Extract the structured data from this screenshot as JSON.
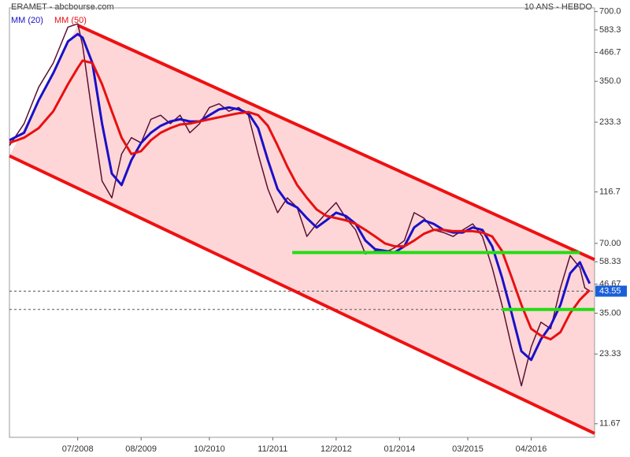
{
  "chart_data": {
    "type": "line",
    "title": "ERAMET - abcbourse.com",
    "subtitle": "10 ANS - HEBDO",
    "log_scale": true,
    "xlim": [
      "05/2007",
      "05/2017"
    ],
    "xticks": [
      "07/2008",
      "08/2009",
      "10/2010",
      "11/2011",
      "12/2012",
      "01/2014",
      "03/2015",
      "04/2016"
    ],
    "ylim": [
      10.2,
      726
    ],
    "yticks": [
      {
        "value": 700,
        "label": "700.0"
      },
      583.3,
      466.7,
      {
        "value": 350,
        "label": "350.0"
      },
      233.3,
      116.7,
      {
        "value": 70,
        "label": "70.00"
      },
      58.33,
      46.67,
      {
        "value": 35,
        "label": "35.00"
      },
      23.33,
      11.67
    ],
    "x": [
      "05/2007",
      "08/2007",
      "11/2007",
      "02/2008",
      "05/2008",
      "07/2008",
      "08/2008",
      "10/2008",
      "12/2008",
      "02/2009",
      "04/2009",
      "06/2009",
      "08/2009",
      "10/2009",
      "12/2009",
      "02/2010",
      "04/2010",
      "06/2010",
      "08/2010",
      "10/2010",
      "12/2010",
      "02/2011",
      "04/2011",
      "06/2011",
      "08/2011",
      "10/2011",
      "12/2011",
      "02/2012",
      "04/2012",
      "06/2012",
      "08/2012",
      "10/2012",
      "12/2012",
      "02/2013",
      "04/2013",
      "06/2013",
      "08/2013",
      "10/2013",
      "12/2013",
      "02/2014",
      "04/2014",
      "06/2014",
      "08/2014",
      "10/2014",
      "12/2014",
      "02/2015",
      "04/2015",
      "06/2015",
      "08/2015",
      "10/2015",
      "12/2015",
      "02/2016",
      "04/2016",
      "06/2016",
      "08/2016",
      "10/2016",
      "12/2016",
      "02/2017",
      "03/2017",
      "04/2017"
    ],
    "price": {
      "color": "#5a1030",
      "values": [
        185,
        230,
        330,
        420,
        600,
        620,
        500,
        250,
        130,
        110,
        170,
        200,
        190,
        240,
        250,
        230,
        250,
        210,
        230,
        270,
        280,
        260,
        270,
        250,
        170,
        120,
        95,
        110,
        100,
        75,
        85,
        95,
        105,
        90,
        80,
        63,
        65,
        64,
        67,
        72,
        95,
        90,
        80,
        78,
        75,
        80,
        85,
        75,
        55,
        38,
        25,
        17,
        25,
        32,
        30,
        45,
        62,
        55,
        45,
        43.55
      ]
    },
    "series": [
      {
        "name": "MM (20)",
        "color": "#1a10c8",
        "values": [
          195,
          210,
          290,
          380,
          520,
          560,
          540,
          420,
          230,
          140,
          125,
          160,
          190,
          210,
          225,
          235,
          240,
          235,
          235,
          250,
          265,
          270,
          265,
          255,
          220,
          160,
          120,
          105,
          100,
          90,
          82,
          88,
          95,
          92,
          85,
          72,
          66,
          65,
          64,
          68,
          82,
          88,
          85,
          80,
          78,
          78,
          82,
          80,
          68,
          50,
          35,
          24,
          22,
          27,
          31,
          38,
          52,
          58,
          52,
          47
        ]
      },
      {
        "name": "MM (50)",
        "color": "#e81010",
        "values": [
          190,
          200,
          220,
          260,
          340,
          400,
          430,
          420,
          340,
          260,
          200,
          170,
          175,
          195,
          210,
          220,
          228,
          230,
          235,
          240,
          245,
          250,
          255,
          258,
          250,
          225,
          185,
          150,
          125,
          110,
          98,
          92,
          90,
          88,
          85,
          80,
          75,
          70,
          68,
          68,
          72,
          77,
          80,
          80,
          79,
          79,
          79,
          78,
          75,
          65,
          50,
          38,
          30,
          28,
          27,
          29,
          35,
          40,
          42,
          44
        ]
      }
    ],
    "channel": {
      "color": "#ee1111",
      "fill": "#ffd6d8",
      "upper": {
        "x": [
          "07/2008",
          "05/2017"
        ],
        "values": [
          611,
          59.6
        ]
      },
      "lower": {
        "x": [
          "05/2007",
          "05/2017"
        ],
        "values": [
          167,
          10.6
        ]
      }
    },
    "supports": {
      "color": "#22dd11",
      "lines": [
        {
          "x": [
            "03/2012",
            "02/2017"
          ],
          "value": 63.9
        },
        {
          "x": [
            "10/2015",
            "05/2017"
          ],
          "value": 36.3
        }
      ]
    },
    "dashed_levels": [
      43.55,
      36.3
    ],
    "last_price": {
      "value": 43.55,
      "color": "#1a5fd8"
    }
  }
}
